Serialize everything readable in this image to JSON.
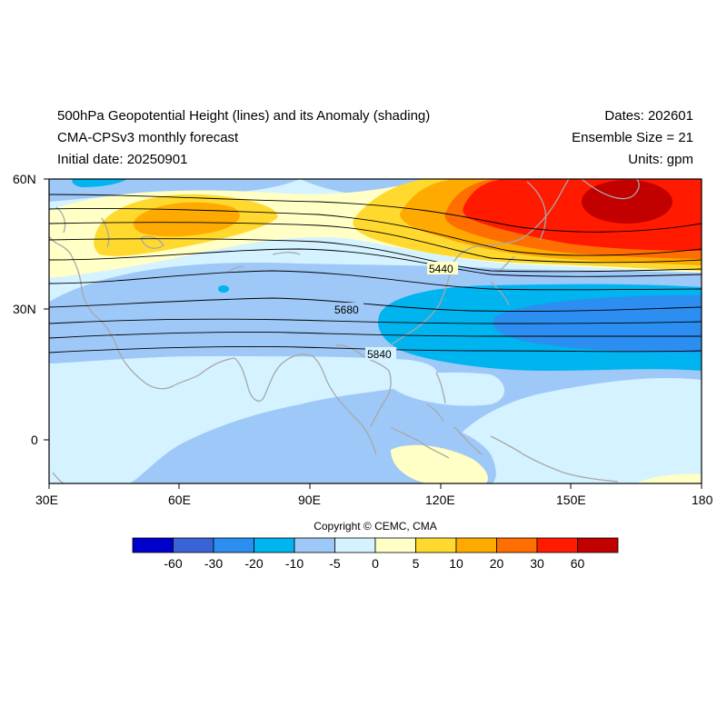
{
  "header": {
    "title": "500hPa Geopotential Height (lines) and its Anomaly (shading)",
    "model": "CMA-CPSv3 monthly forecast",
    "initial": "Initial date: 20250901",
    "dates": "Dates: 202601",
    "ensemble": "Ensemble Size = 21",
    "units": "Units: gpm"
  },
  "map": {
    "lon_range": [
      30,
      180
    ],
    "lat_range": [
      -10,
      60
    ],
    "x_ticks": [
      "30E",
      "60E",
      "90E",
      "120E",
      "150E",
      "180"
    ],
    "y_ticks": [
      "60N",
      "30N",
      "0"
    ],
    "contour_labels": [
      "5440",
      "5680",
      "5840"
    ]
  },
  "colorbar": {
    "labels": [
      "-60",
      "-30",
      "-20",
      "-10",
      "-5",
      "0",
      "5",
      "10",
      "20",
      "30",
      "60"
    ],
    "colors": [
      "#0000cd",
      "#3a63d6",
      "#2b8ef0",
      "#00b4ef",
      "#9ec8f7",
      "#d4f2ff",
      "#ffffc6",
      "#ffd92e",
      "#ffaa00",
      "#ff6e00",
      "#ff1a00",
      "#c20000"
    ]
  },
  "copyright": "Copyright © CEMC, CMA"
}
